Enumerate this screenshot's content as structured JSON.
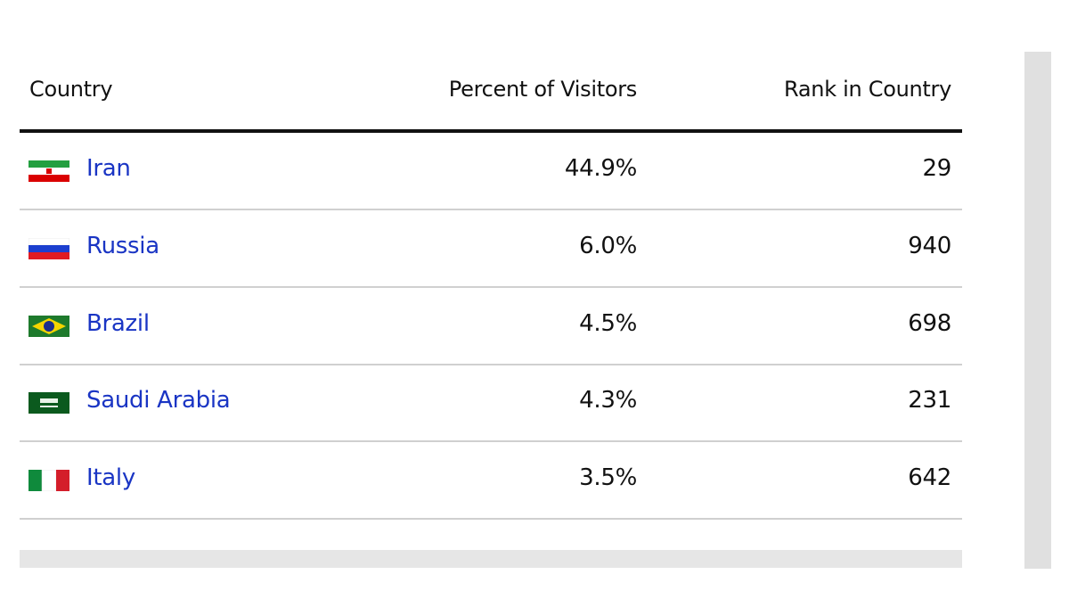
{
  "table": {
    "header": [
      "Country",
      "Percent of Visitors",
      "Rank in Country"
    ],
    "rows": [
      [
        "Iran",
        "44.9%",
        "29"
      ],
      [
        "Russia",
        "6.0%",
        "940"
      ],
      [
        "Brazil",
        "4.5%",
        "698"
      ],
      [
        "Saudi Arabia",
        "4.3%",
        "231"
      ],
      [
        "Italy",
        "3.5%",
        "642"
      ]
    ]
  }
}
